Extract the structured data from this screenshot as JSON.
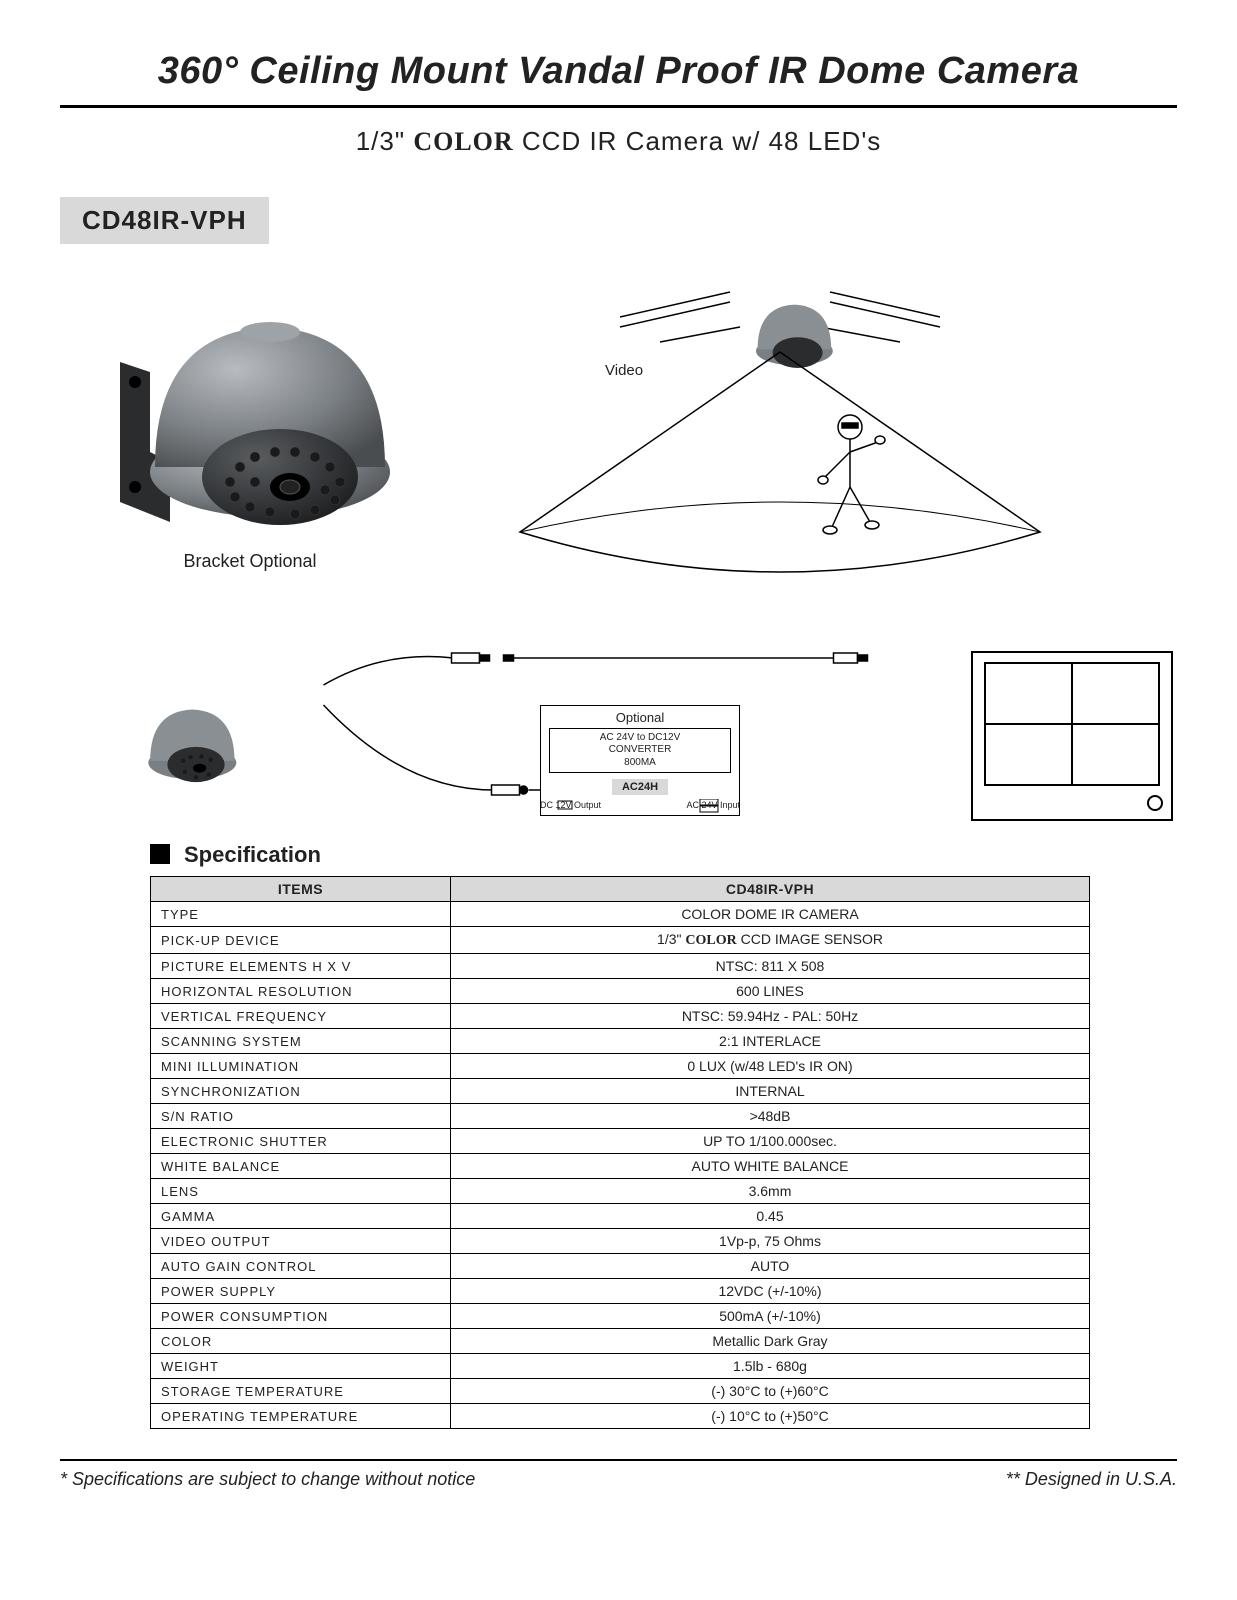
{
  "header": {
    "title": "360° Ceiling Mount Vandal Proof IR Dome Camera",
    "subtitle_pre": "1/3\" ",
    "subtitle_color": "COLOR",
    "subtitle_post": " CCD IR Camera w/ 48 LED's"
  },
  "model": "CD48IR-VPH",
  "hero": {
    "caption": "Bracket Optional",
    "video_label": "Video"
  },
  "wiring": {
    "optional": "Optional",
    "conv_line1": "AC 24V to DC12V",
    "conv_line2": "CONVERTER",
    "conv_line3": "800MA",
    "ac24h": "AC24H",
    "dc_out": "DC 12V Output",
    "ac_in": "AC 24V Input"
  },
  "spec": {
    "heading": "Specification",
    "columns": [
      "ITEMS",
      "CD48IR-VPH"
    ],
    "rows": [
      [
        "TYPE",
        "COLOR DOME IR CAMERA"
      ],
      [
        "PICK-UP DEVICE",
        "1/3\" COLOR CCD IMAGE SENSOR"
      ],
      [
        "PICTURE ELEMENTS H X V",
        "NTSC: 811 X 508"
      ],
      [
        "HORIZONTAL RESOLUTION",
        "600 LINES"
      ],
      [
        "VERTICAL FREQUENCY",
        "NTSC: 59.94Hz - PAL: 50Hz"
      ],
      [
        "SCANNING SYSTEM",
        "2:1 INTERLACE"
      ],
      [
        "MINI ILLUMINATION",
        "0 LUX  (w/48 LED's IR ON)"
      ],
      [
        "SYNCHRONIZATION",
        "INTERNAL"
      ],
      [
        "S/N RATIO",
        ">48dB"
      ],
      [
        "ELECTRONIC SHUTTER",
        "UP TO 1/100.000sec."
      ],
      [
        "WHITE BALANCE",
        "AUTO WHITE BALANCE"
      ],
      [
        "LENS",
        "3.6mm"
      ],
      [
        "GAMMA",
        "0.45"
      ],
      [
        "VIDEO OUTPUT",
        "1Vp-p, 75 Ohms"
      ],
      [
        "AUTO GAIN CONTROL",
        "AUTO"
      ],
      [
        "POWER SUPPLY",
        "12VDC (+/-10%)"
      ],
      [
        "POWER CONSUMPTION",
        "500mA (+/-10%)"
      ],
      [
        "COLOR",
        "Metallic Dark Gray"
      ],
      [
        "WEIGHT",
        "1.5lb  -  680g"
      ],
      [
        "STORAGE TEMPERATURE",
        "(-) 30°C to (+)60°C"
      ],
      [
        "OPERATING TEMPERATURE",
        "(-) 10°C to (+)50°C"
      ]
    ]
  },
  "footer": {
    "left": "* Specifications are subject to change without notice",
    "right": "** Designed  in U.S.A."
  },
  "colors": {
    "badge_bg": "#d9d9d9",
    "line": "#000000",
    "cam_body": "#7a7f83",
    "cam_dark": "#3a3d40"
  }
}
